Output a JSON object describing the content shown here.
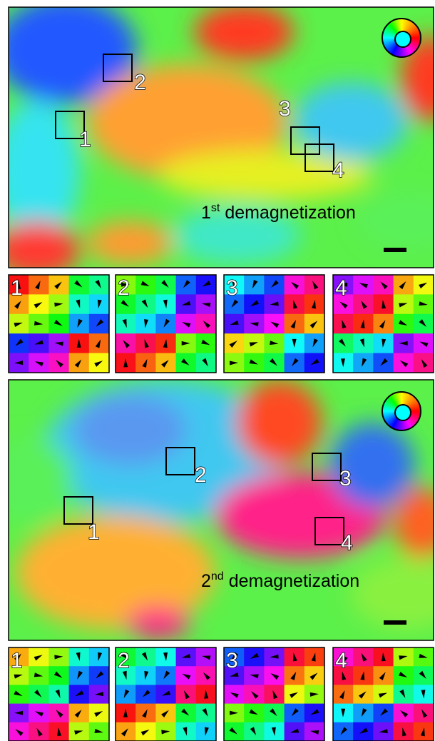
{
  "panels": [
    {
      "ordinal": "1",
      "suffix": "st",
      "title": "demagnetization",
      "markers": [
        "1",
        "2",
        "3",
        "4"
      ],
      "insets": [
        "1",
        "2",
        "3",
        "4"
      ]
    },
    {
      "ordinal": "2",
      "suffix": "nd",
      "title": "demagnetization",
      "markers": [
        "1",
        "2",
        "3",
        "4"
      ],
      "insets": [
        "1",
        "2",
        "3",
        "4"
      ]
    }
  ]
}
